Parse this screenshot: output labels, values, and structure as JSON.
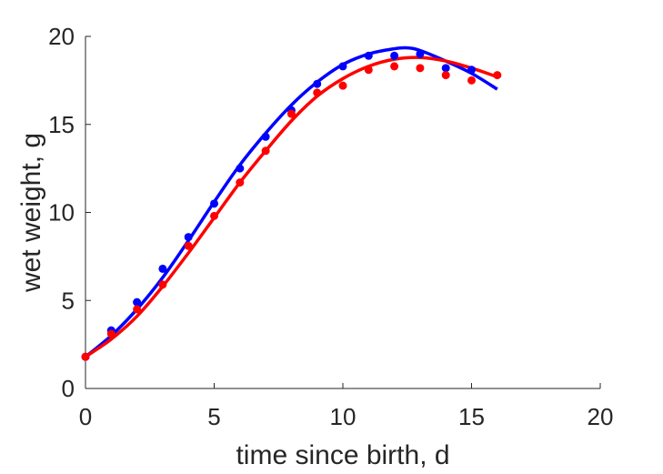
{
  "chart_data": {
    "type": "line",
    "title": "",
    "xlabel": "time since birth, d",
    "ylabel": "wet weight, g",
    "xlim": [
      0,
      20
    ],
    "ylim": [
      0,
      20
    ],
    "xticks": [
      "0",
      "5",
      "10",
      "15",
      "20"
    ],
    "yticks": [
      "0",
      "5",
      "10",
      "15",
      "20"
    ],
    "grid": false,
    "legend": "none",
    "series": [
      {
        "color": "#0000ff",
        "style": "points",
        "x": [
          0,
          1,
          2,
          3,
          4,
          5,
          6,
          7,
          8,
          9,
          10,
          11,
          12,
          13,
          14,
          15
        ],
        "y": [
          1.8,
          3.3,
          4.9,
          6.8,
          8.6,
          10.5,
          12.5,
          14.3,
          15.8,
          17.3,
          18.3,
          18.9,
          18.9,
          19.0,
          18.2,
          18.1
        ]
      },
      {
        "color": "#ff0000",
        "style": "points",
        "x": [
          0,
          1,
          2,
          3,
          4,
          5,
          6,
          7,
          8,
          9,
          10,
          11,
          12,
          13,
          14,
          15,
          16
        ],
        "y": [
          1.8,
          3.1,
          4.5,
          5.9,
          8.1,
          9.8,
          11.7,
          13.5,
          15.6,
          16.8,
          17.2,
          18.1,
          18.3,
          18.2,
          17.8,
          17.5,
          17.8
        ]
      },
      {
        "color": "#0000ff",
        "style": "line",
        "x": [
          0,
          1,
          2,
          3,
          4,
          5,
          6,
          7,
          8,
          9,
          10,
          11,
          12,
          12.5,
          13,
          14,
          15,
          16
        ],
        "y": [
          1.8,
          3.0,
          4.5,
          6.3,
          8.4,
          10.6,
          12.7,
          14.5,
          16.1,
          17.4,
          18.4,
          19.0,
          19.3,
          19.35,
          19.2,
          18.6,
          17.9,
          17.0
        ]
      },
      {
        "color": "#ff0000",
        "style": "line",
        "x": [
          0,
          1,
          2,
          3,
          4,
          5,
          6,
          7,
          8,
          9,
          10,
          11,
          12,
          13,
          14,
          15,
          16
        ],
        "y": [
          1.8,
          2.8,
          4.1,
          5.8,
          7.7,
          9.7,
          11.7,
          13.5,
          15.2,
          16.6,
          17.6,
          18.3,
          18.7,
          18.8,
          18.6,
          18.2,
          17.7
        ]
      }
    ]
  }
}
